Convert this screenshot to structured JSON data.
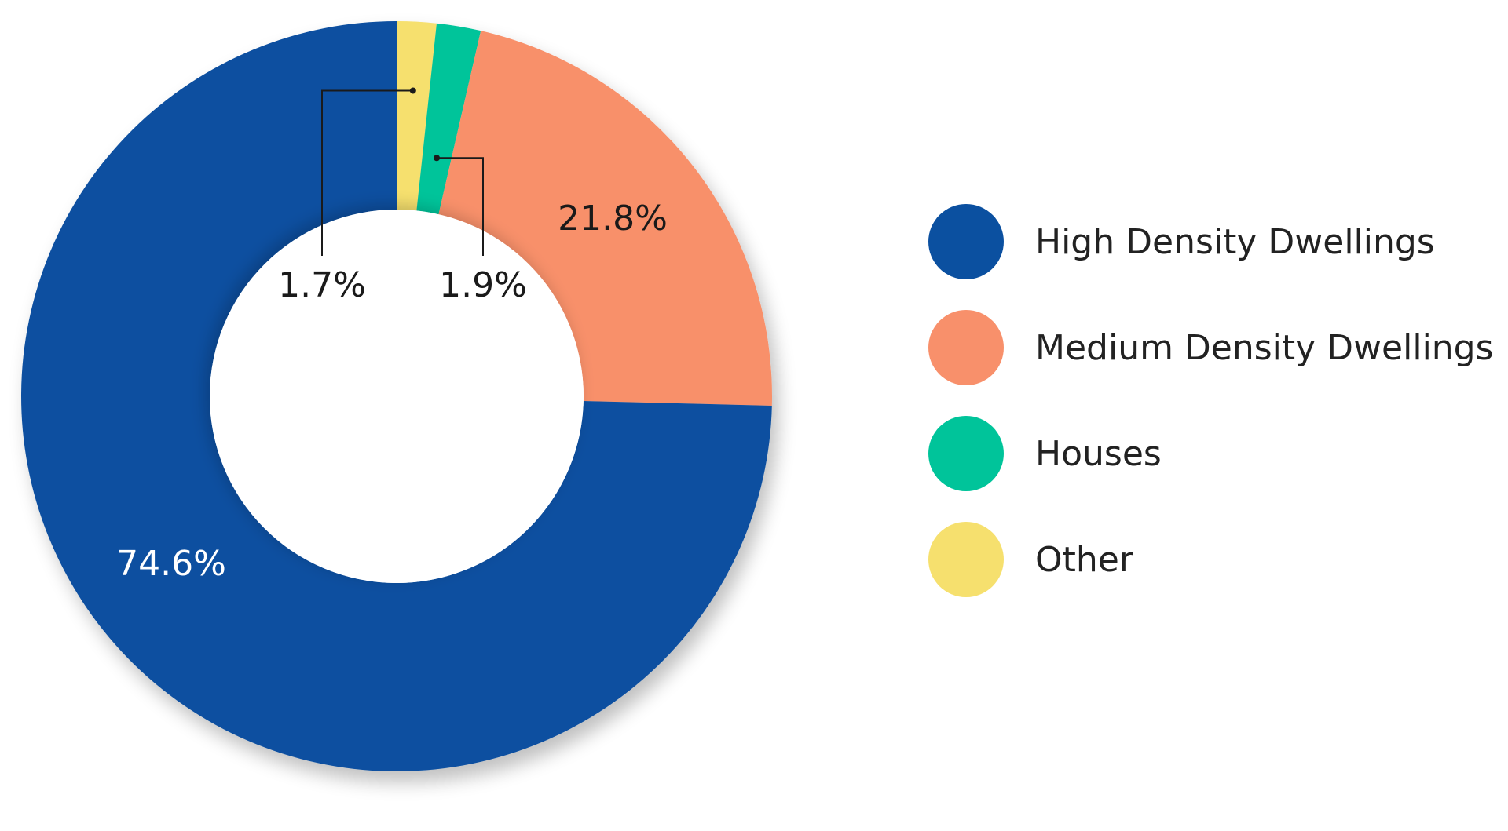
{
  "chart_data": {
    "type": "pie",
    "variant": "donut",
    "title": "",
    "unit": "%",
    "slices": [
      {
        "name": "Other",
        "value": 1.7,
        "label": "1.7%",
        "color": "#F6E06E"
      },
      {
        "name": "Houses",
        "value": 1.9,
        "label": "1.9%",
        "color": "#00C49A"
      },
      {
        "name": "Medium Density Dwellings",
        "value": 21.8,
        "label": "21.8%",
        "color": "#F8906B"
      },
      {
        "name": "High Density Dwellings",
        "value": 74.6,
        "label": "74.6%",
        "color": "#0B50A0"
      }
    ],
    "legend": {
      "position": "right",
      "items": [
        "High Density Dwellings",
        "Medium Density Dwellings",
        "Houses",
        "Other"
      ]
    }
  }
}
